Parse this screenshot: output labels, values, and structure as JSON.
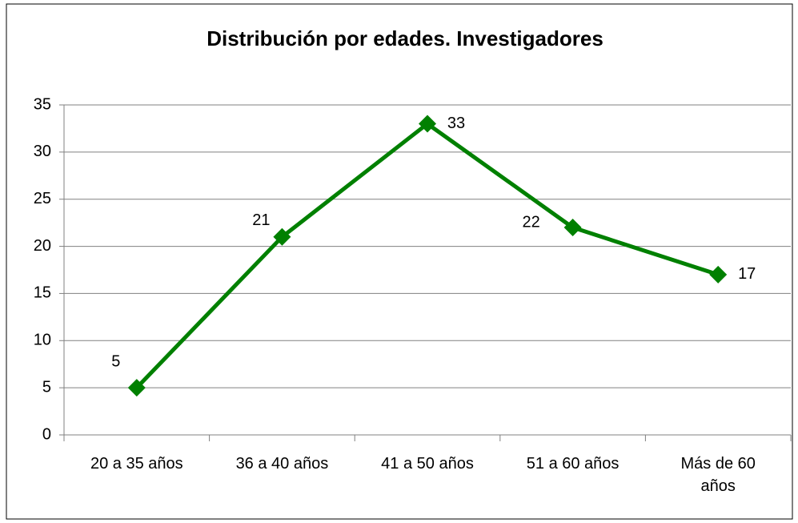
{
  "chart_data": {
    "type": "line",
    "title": "Distribución por edades. Investigadores",
    "categories": [
      "20 a 35 años",
      "36 a 40 años",
      "41 a 50 años",
      "51 a 60 años",
      "Más de 60 años"
    ],
    "values": [
      5,
      21,
      33,
      22,
      17
    ],
    "color": "#008000",
    "ylim": [
      0,
      35
    ],
    "yticks": [
      0,
      5,
      10,
      15,
      20,
      25,
      30,
      35
    ],
    "grid": true
  }
}
